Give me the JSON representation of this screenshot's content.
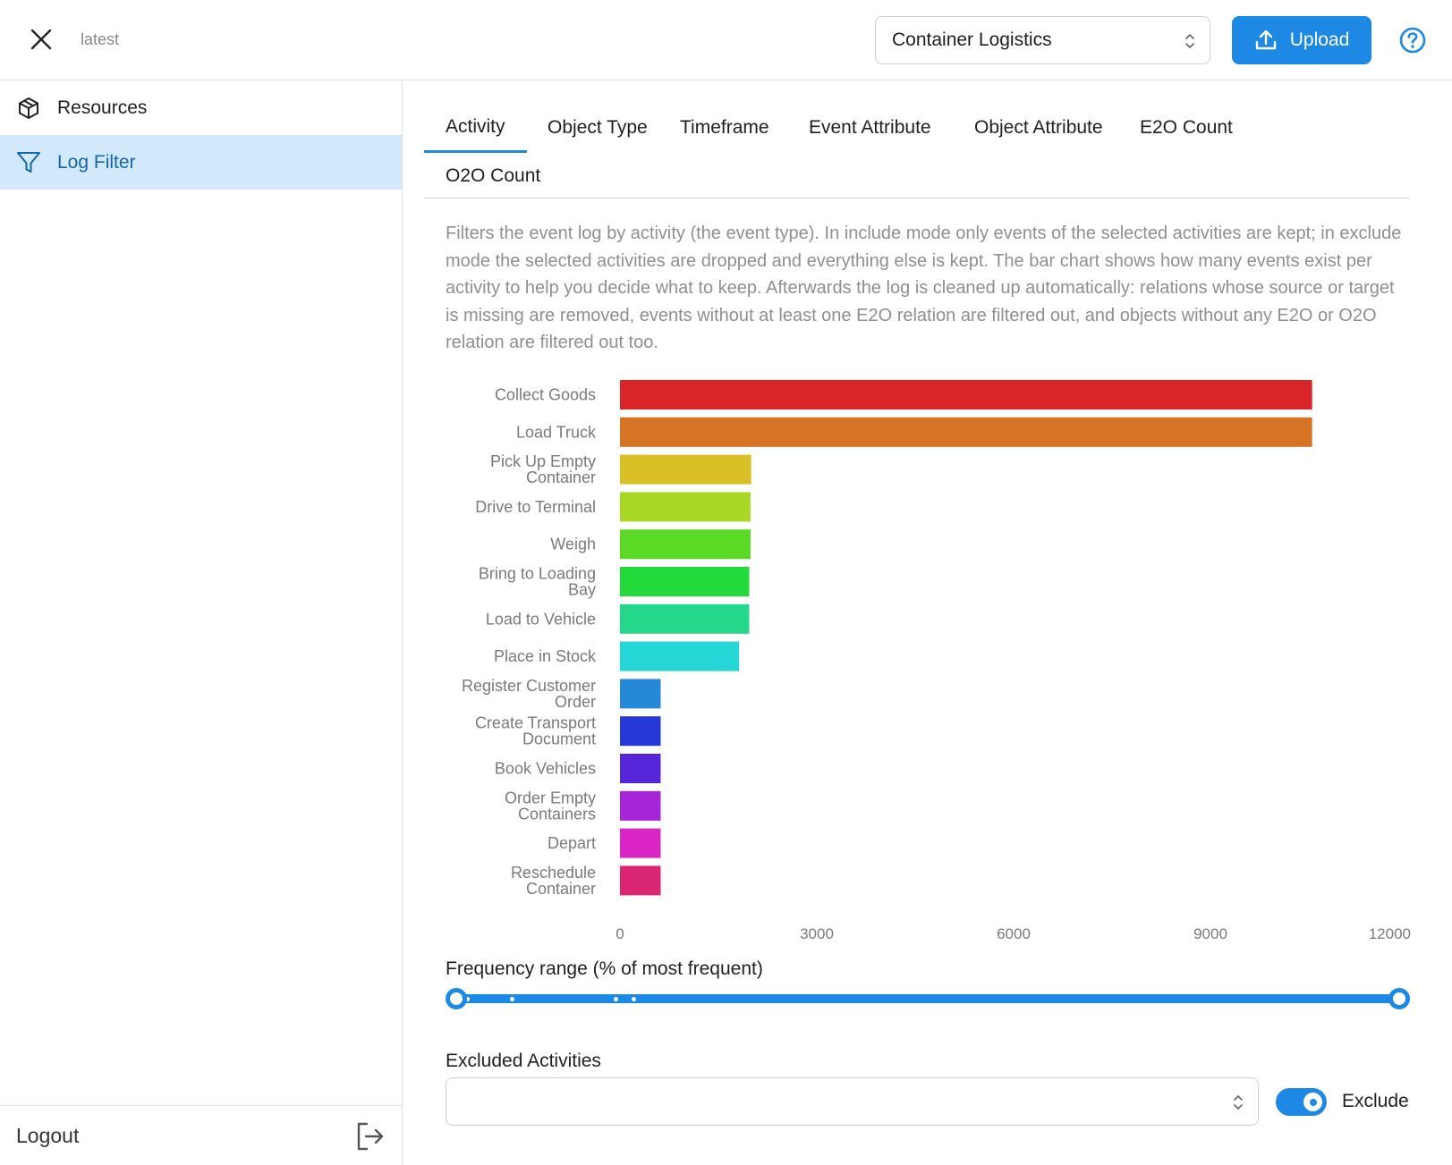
{
  "header": {
    "version_label": "latest",
    "dataset_select_value": "Container Logistics",
    "upload_label": "Upload",
    "accent_color": "#1e88e5"
  },
  "sidebar": {
    "items": [
      {
        "label": "Resources",
        "icon": "package-icon"
      },
      {
        "label": "Log Filter",
        "icon": "filter-icon",
        "active": true
      }
    ],
    "logout_label": "Logout"
  },
  "tabs": [
    {
      "label": "Activity",
      "active": true
    },
    {
      "label": "Object Type"
    },
    {
      "label": "Timeframe"
    },
    {
      "label": "Event Attribute"
    },
    {
      "label": "Object Attribute"
    },
    {
      "label": "E2O Count"
    },
    {
      "label": "O2O Count"
    }
  ],
  "description": "Filters the event log by activity (the event type). In include mode only events of the selected activities are kept; in exclude mode the selected activities are dropped and everything else is kept. The bar chart shows how many events exist per activity to help you decide what to keep. Afterwards the log is cleaned up automatically: relations whose source or target is missing are removed, events without at least one E2O relation are filtered out, and objects without any E2O or O2O relation are filtered out too.",
  "chart_data": {
    "type": "bar",
    "orientation": "horizontal",
    "categories": [
      "Collect Goods",
      "Load Truck",
      "Pick Up Empty Container",
      "Drive to Terminal",
      "Weigh",
      "Bring to Loading Bay",
      "Load to Vehicle",
      "Place in Stock",
      "Register Customer Order",
      "Create Transport Document",
      "Book Vehicles",
      "Order Empty Containers",
      "Depart",
      "Reschedule Container"
    ],
    "category_lines": [
      [
        "Collect Goods"
      ],
      [
        "Load Truck"
      ],
      [
        "Pick Up Empty",
        "Container"
      ],
      [
        "Drive to Terminal"
      ],
      [
        "Weigh"
      ],
      [
        "Bring to Loading",
        "Bay"
      ],
      [
        "Load to Vehicle"
      ],
      [
        "Place in Stock"
      ],
      [
        "Register Customer",
        "Order"
      ],
      [
        "Create Transport",
        "Document"
      ],
      [
        "Book Vehicles"
      ],
      [
        "Order Empty",
        "Containers"
      ],
      [
        "Depart"
      ],
      [
        "Reschedule",
        "Container"
      ]
    ],
    "values": [
      10550,
      10550,
      2000,
      1990,
      1990,
      1970,
      1970,
      1815,
      620,
      620,
      620,
      620,
      620,
      620
    ],
    "colors": [
      "#d92528",
      "#d77325",
      "#d8c026",
      "#a8d825",
      "#5ad925",
      "#24d93a",
      "#25d78b",
      "#25d7d7",
      "#2588d9",
      "#2539d9",
      "#5725d9",
      "#a725d9",
      "#d925c3",
      "#d92572"
    ],
    "xlim": [
      0,
      12000
    ],
    "xticks": [
      "0",
      "3000",
      "6000",
      "9000",
      "12000"
    ],
    "grid": false
  },
  "frequency": {
    "label": "Frequency range (% of most frequent)",
    "range": [
      0,
      100
    ]
  },
  "excluded": {
    "label": "Excluded Activities",
    "value": "",
    "mode_label": "Exclude",
    "mode_on": true
  }
}
